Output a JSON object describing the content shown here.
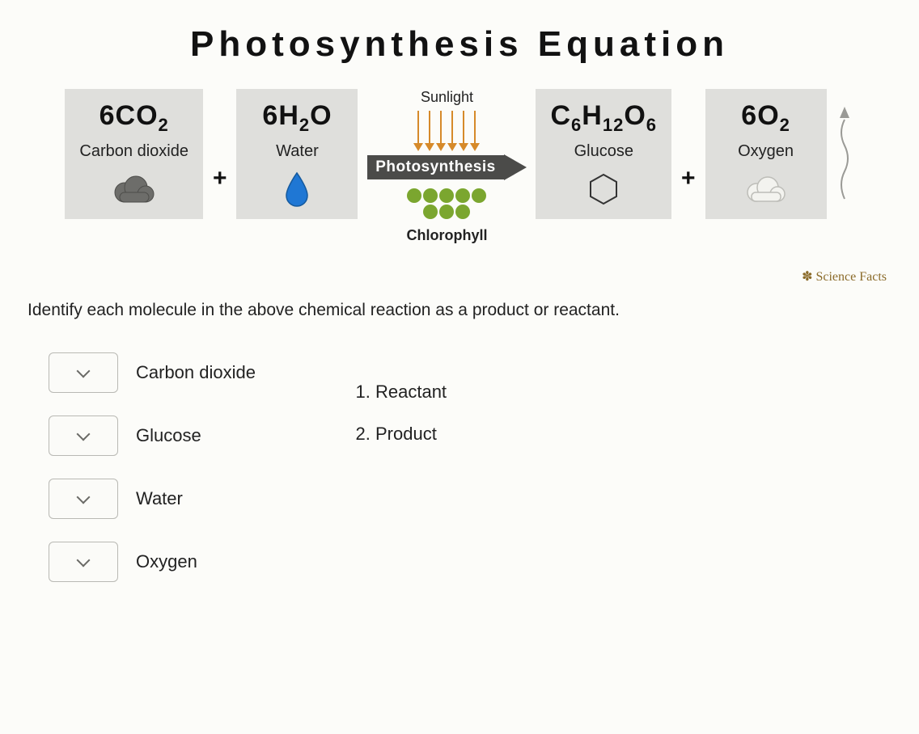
{
  "title": "Photosynthesis Equation",
  "equation": {
    "sunlight_label": "Sunlight",
    "sunlight_arrow_count": 6,
    "sunlight_arrow_color": "#d68a2a",
    "photosynthesis_label": "Photosynthesis",
    "photosynthesis_bg": "#4b4b49",
    "photosynthesis_color": "#ffffff",
    "chlorophyll_label": "Chlorophyll",
    "chlorophyll_dot_color": "#7ba62f",
    "chlorophyll_dot_count": 8,
    "plus": "+",
    "box_bg": "#dfdfdc",
    "reactant1": {
      "coef": "6",
      "elems": [
        {
          "sym": "C"
        },
        {
          "sym": "O",
          "sub": "2"
        }
      ],
      "label": "Carbon dioxide",
      "icon": "cloud-dark"
    },
    "reactant2": {
      "coef": "6",
      "elems": [
        {
          "sym": "H",
          "sub": "2"
        },
        {
          "sym": "O"
        }
      ],
      "label": "Water",
      "icon": "water-drop",
      "icon_color": "#1f77d4"
    },
    "product1": {
      "coef": "",
      "elems": [
        {
          "sym": "C",
          "sub": "6"
        },
        {
          "sym": "H",
          "sub": "12"
        },
        {
          "sym": "O",
          "sub": "6"
        }
      ],
      "label": "Glucose",
      "icon": "hexagon"
    },
    "product2": {
      "coef": "6",
      "elems": [
        {
          "sym": "O",
          "sub": "2"
        }
      ],
      "label": "Oxygen",
      "icon": "cloud-light"
    }
  },
  "credit": "Science Facts",
  "question": "Identify each molecule in the above chemical reaction as a product or reactant.",
  "choices": [
    {
      "label": "Carbon dioxide"
    },
    {
      "label": "Glucose"
    },
    {
      "label": "Water"
    },
    {
      "label": "Oxygen"
    }
  ],
  "legend": [
    {
      "num": "1.",
      "text": "Reactant"
    },
    {
      "num": "2.",
      "text": "Product"
    }
  ],
  "colors": {
    "page_bg": "#fcfcf9",
    "text": "#1a1a1a",
    "dropdown_border": "#b9b9b4",
    "cloud_dark": "#6d6d6a",
    "cloud_light": "#e7e7e3",
    "hexagon_stroke": "#333333"
  }
}
